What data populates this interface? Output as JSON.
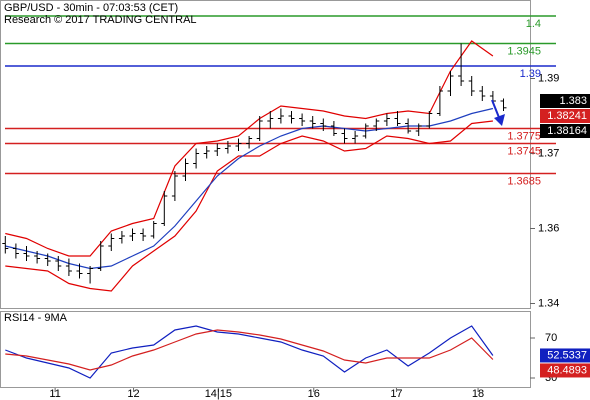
{
  "chart_data": [
    {
      "type": "candlestick",
      "title": "GBP/USD - 30min - 07:03:53 (CET)",
      "subtitle": "Research © 2017 TRADING CENTRAL",
      "color": "#000000",
      "open": [
        1.3545,
        1.3535,
        1.3525,
        1.352,
        1.3515,
        1.351,
        1.35,
        1.349,
        1.3485,
        1.3495,
        1.354,
        1.3555,
        1.356,
        1.3565,
        1.356,
        1.3585,
        1.364,
        1.368,
        1.3705,
        1.3725,
        1.373,
        1.3735,
        1.374,
        1.3745,
        1.3755,
        1.379,
        1.3795,
        1.38,
        1.3795,
        1.379,
        1.3785,
        1.378,
        1.3765,
        1.3755,
        1.376,
        1.378,
        1.379,
        1.3795,
        1.3785,
        1.377,
        1.378,
        1.3805,
        1.385,
        1.388,
        1.387,
        1.385,
        1.384,
        1.383
      ],
      "high": [
        1.356,
        1.3545,
        1.354,
        1.353,
        1.3525,
        1.352,
        1.3515,
        1.3505,
        1.35,
        1.355,
        1.3565,
        1.357,
        1.3575,
        1.3575,
        1.359,
        1.365,
        1.369,
        1.3715,
        1.3735,
        1.374,
        1.3745,
        1.375,
        1.3755,
        1.376,
        1.38,
        1.381,
        1.3815,
        1.381,
        1.3805,
        1.38,
        1.3795,
        1.379,
        1.3775,
        1.377,
        1.3785,
        1.3795,
        1.3805,
        1.381,
        1.3795,
        1.3785,
        1.381,
        1.386,
        1.389,
        1.3945,
        1.388,
        1.386,
        1.385,
        1.3835
      ],
      "low": [
        1.3525,
        1.3515,
        1.351,
        1.3505,
        1.35,
        1.349,
        1.348,
        1.3475,
        1.3465,
        1.349,
        1.353,
        1.3545,
        1.355,
        1.355,
        1.3555,
        1.358,
        1.363,
        1.367,
        1.3695,
        1.3715,
        1.372,
        1.3725,
        1.373,
        1.3735,
        1.375,
        1.3775,
        1.3785,
        1.3785,
        1.378,
        1.3775,
        1.377,
        1.376,
        1.3745,
        1.3745,
        1.3755,
        1.377,
        1.378,
        1.378,
        1.3765,
        1.376,
        1.3775,
        1.38,
        1.384,
        1.386,
        1.384,
        1.383,
        1.3825,
        1.381
      ],
      "close": [
        1.3535,
        1.3525,
        1.352,
        1.3515,
        1.351,
        1.35,
        1.349,
        1.3485,
        1.3495,
        1.354,
        1.3555,
        1.356,
        1.3565,
        1.356,
        1.3585,
        1.364,
        1.368,
        1.3705,
        1.3725,
        1.373,
        1.3735,
        1.374,
        1.3745,
        1.3755,
        1.379,
        1.3795,
        1.38,
        1.3795,
        1.379,
        1.3785,
        1.378,
        1.3765,
        1.3755,
        1.376,
        1.378,
        1.379,
        1.3795,
        1.3785,
        1.377,
        1.378,
        1.3805,
        1.385,
        1.388,
        1.387,
        1.385,
        1.384,
        1.383,
        1.38164
      ],
      "close_marker_color": "#000000",
      "lines": [
        {
          "color": "#e00000",
          "x": [
            0,
            2,
            4,
            6,
            8,
            10,
            12,
            14,
            16,
            18,
            20,
            22,
            24,
            26,
            28,
            30,
            32,
            34,
            36,
            38,
            40,
            42,
            44,
            46
          ],
          "values": [
            1.3565,
            1.3555,
            1.3535,
            1.352,
            1.352,
            1.357,
            1.3585,
            1.3595,
            1.37,
            1.3745,
            1.375,
            1.376,
            1.3795,
            1.382,
            1.3815,
            1.381,
            1.38,
            1.3795,
            1.3805,
            1.381,
            1.3805,
            1.389,
            1.395,
            1.392
          ]
        },
        {
          "color": "#e00000",
          "x": [
            0,
            2,
            4,
            6,
            8,
            10,
            12,
            14,
            16,
            18,
            20,
            22,
            24,
            26,
            28,
            30,
            32,
            34,
            36,
            38,
            40,
            42,
            44,
            46
          ],
          "values": [
            1.35,
            1.3495,
            1.349,
            1.3465,
            1.3455,
            1.345,
            1.35,
            1.353,
            1.356,
            1.361,
            1.369,
            1.372,
            1.372,
            1.3745,
            1.376,
            1.375,
            1.373,
            1.3735,
            1.376,
            1.3755,
            1.3745,
            1.375,
            1.3785,
            1.379
          ]
        },
        {
          "color": "#1f3fbf",
          "x": [
            0,
            2,
            4,
            6,
            8,
            10,
            12,
            14,
            16,
            18,
            20,
            22,
            24,
            26,
            28,
            30,
            32,
            34,
            36,
            38,
            40,
            42,
            44,
            46
          ],
          "values": [
            1.354,
            1.353,
            1.352,
            1.3505,
            1.3495,
            1.35,
            1.352,
            1.354,
            1.358,
            1.363,
            1.368,
            1.3715,
            1.374,
            1.376,
            1.3775,
            1.378,
            1.3775,
            1.377,
            1.3775,
            1.378,
            1.378,
            1.379,
            1.3805,
            1.3815
          ]
        }
      ],
      "levels": [
        {
          "value": 1.4,
          "color": "#2a9a2a"
        },
        {
          "value": 1.3945,
          "color": "#2a9a2a"
        },
        {
          "value": 1.39,
          "color": "#1a2acc"
        },
        {
          "value": 1.3775,
          "color": "#d42020"
        },
        {
          "value": 1.3745,
          "color": "#d42020"
        },
        {
          "value": 1.3685,
          "color": "#d42020"
        }
      ],
      "markers": [
        {
          "value": 1.383,
          "color": "#000000"
        },
        {
          "value": 1.38241,
          "color": "#d42020"
        }
      ],
      "xlim": [
        -0.5,
        49.5
      ],
      "xticks": [
        {
          "value": 4.7,
          "label": "11"
        },
        {
          "value": 12.1,
          "label": "12"
        },
        {
          "value": 20.1,
          "label": "14|15"
        },
        {
          "value": 29.1,
          "label": "16"
        },
        {
          "value": 36.9,
          "label": "17"
        },
        {
          "value": 44.6,
          "label": "18"
        }
      ],
      "ylim": [
        1.3416,
        1.4032
      ],
      "yticks": [
        {
          "value": 1.3875,
          "label": "1.39"
        },
        {
          "value": 1.3725,
          "label": "1.37"
        },
        {
          "value": 1.3575,
          "label": "1.36"
        },
        {
          "value": 1.3425,
          "label": "1.34"
        }
      ]
    },
    {
      "type": "line",
      "title": "RSI14 - 9MA",
      "series": [
        {
          "color": "#1020c0",
          "x": [
            0,
            2,
            4,
            6,
            8,
            10,
            12,
            14,
            16,
            18,
            20,
            22,
            24,
            26,
            28,
            30,
            32,
            34,
            36,
            38,
            40,
            42,
            44,
            46
          ],
          "values": [
            58,
            50,
            45,
            40,
            30,
            55,
            60,
            63,
            78,
            82,
            76,
            74,
            70,
            66,
            58,
            52,
            36,
            50,
            58,
            42,
            55,
            70,
            82,
            52.5337
          ]
        },
        {
          "color": "#d42020",
          "x": [
            0,
            2,
            4,
            6,
            8,
            10,
            12,
            14,
            16,
            18,
            20,
            22,
            24,
            26,
            28,
            30,
            32,
            34,
            36,
            38,
            40,
            42,
            44,
            46
          ],
          "values": [
            54,
            52,
            48,
            44,
            38,
            43,
            52,
            58,
            66,
            74,
            78,
            76,
            73,
            69,
            63,
            57,
            48,
            45,
            50,
            50,
            50,
            58,
            70,
            48.4893
          ]
        }
      ],
      "ylim": [
        20,
        96
      ],
      "yticks": [
        30,
        70
      ]
    }
  ]
}
